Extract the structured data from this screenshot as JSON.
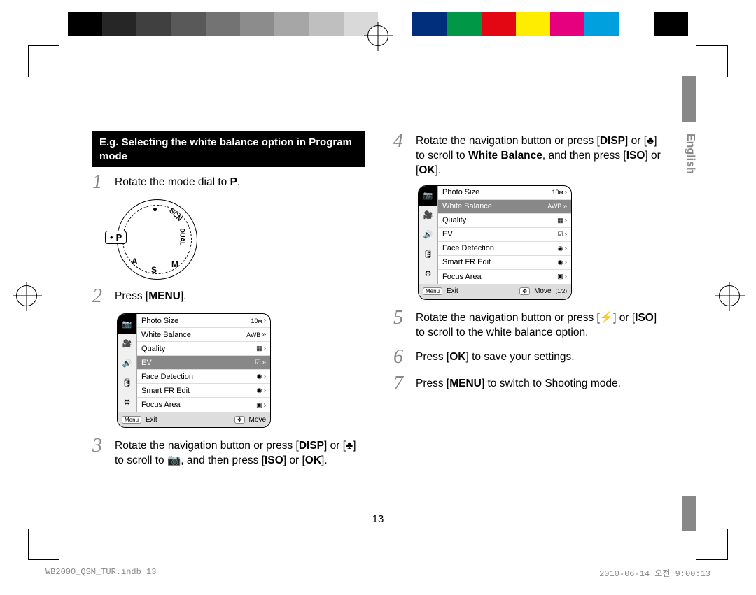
{
  "colorbar": [
    "#000000",
    "#262626",
    "#404040",
    "#595959",
    "#737373",
    "#8c8c8c",
    "#a6a6a6",
    "#bfbfbf",
    "#d9d9d9",
    "#ffffff",
    "#012f7b",
    "#009846",
    "#e30613",
    "#ffed00",
    "#e6007e",
    "#00a0de",
    "#ffffff",
    "#000000"
  ],
  "heading": "E.g. Selecting the white balance option in Program mode",
  "lang_tab": "English",
  "step1": {
    "num": "1",
    "prefix": "Rotate the mode dial to ",
    "suffix": "."
  },
  "step2": {
    "num": "2",
    "prefix": "Press [",
    "btn": "MENU",
    "suffix": "]."
  },
  "step3": {
    "num": "3",
    "line": "Rotate the navigation button or press [DISP] or [♣] to scroll to 📷, and then press [ISO] or [OK]."
  },
  "step4": {
    "num": "4",
    "t1": "Rotate the navigation button or press [",
    "b1": "DISP",
    "t2": "] or [",
    "b2": "♣",
    "t3": "] to scroll to ",
    "bold": "White Balance",
    "t4": ", and then press [",
    "b3": "ISO",
    "t5": "] or [",
    "b4": "OK",
    "t6": "]."
  },
  "step5": {
    "num": "5",
    "line": "Rotate the navigation button or press [⚡] or [ISO] to scroll to the white balance option."
  },
  "step6": {
    "num": "6",
    "t1": "Press [",
    "b1": "OK",
    "t2": "] to save your settings."
  },
  "step7": {
    "num": "7",
    "t1": "Press [",
    "b1": "MENU",
    "t2": "] to switch to Shooting mode."
  },
  "dial": {
    "p": "P",
    "letters": [
      "SCN",
      "DUAL",
      "M",
      "S",
      "A",
      "●"
    ]
  },
  "menu": {
    "icons": [
      "📷",
      "🎥",
      "🔊",
      "🛢",
      "⚙"
    ],
    "items": [
      {
        "label": "Photo Size",
        "val": "10ᴍ",
        "arr": "›"
      },
      {
        "label": "White Balance",
        "val": "AWB",
        "arr": "»"
      },
      {
        "label": "Quality",
        "val": "▦",
        "arr": "›"
      },
      {
        "label": "EV",
        "val": "☑",
        "arr": "»",
        "sel": true
      },
      {
        "label": "Face Detection",
        "val": "◉",
        "arr": "›"
      },
      {
        "label": "Smart FR Edit",
        "val": "◉",
        "arr": "›"
      },
      {
        "label": "Focus Area",
        "val": "▣",
        "arr": "›"
      }
    ],
    "foot": {
      "menu_tag": "Menu",
      "exit": "Exit",
      "nav": "✥",
      "move": "Move"
    }
  },
  "menu2": {
    "icons": [
      "📷",
      "🎥",
      "🔊",
      "🛢",
      "⚙"
    ],
    "items": [
      {
        "label": "Photo Size",
        "val": "10ᴍ",
        "arr": "›"
      },
      {
        "label": "White Balance",
        "val": "AWB",
        "arr": "»",
        "sel": true
      },
      {
        "label": "Quality",
        "val": "▦",
        "arr": "›"
      },
      {
        "label": "EV",
        "val": "☑",
        "arr": "›"
      },
      {
        "label": "Face Detection",
        "val": "◉",
        "arr": "›"
      },
      {
        "label": "Smart FR Edit",
        "val": "◉",
        "arr": "›"
      },
      {
        "label": "Focus Area",
        "val": "▣",
        "arr": "›"
      }
    ],
    "foot": {
      "menu_tag": "Menu",
      "exit": "Exit",
      "nav": "✥",
      "move": "Move",
      "page": "(1/2)"
    }
  },
  "page_num": "13",
  "footer_left": "WB2000_QSM_TUR.indb   13",
  "footer_right": "2010-06-14   오전 9:00:13"
}
